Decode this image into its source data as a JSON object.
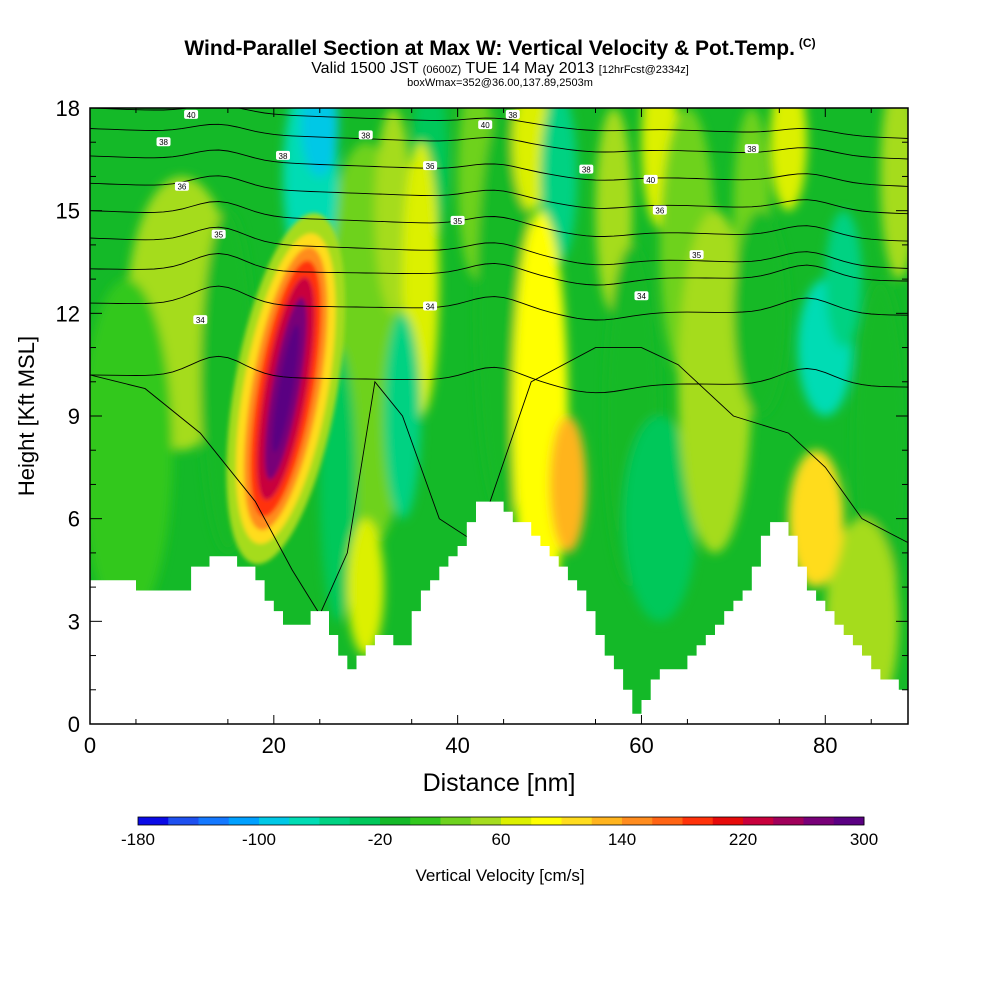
{
  "header": {
    "title": "Wind-Parallel Section at Max W: Vertical Velocity & Pot.Temp.",
    "copyright": "(C)",
    "valid_a": "Valid 1500 JST",
    "valid_b": "(0600Z)",
    "valid_c": "TUE 14 May 2013",
    "valid_d": "[12hrFcst@2334z]",
    "box": "boxWmax=352@36.00,137.89,2503m"
  },
  "chart_data": {
    "type": "heatmap",
    "xlabel": "Distance [nm]",
    "ylabel": "Height [Kft MSL]",
    "xlim": [
      0,
      89
    ],
    "ylim": [
      0,
      18
    ],
    "xticks": [
      0,
      20,
      40,
      60,
      80
    ],
    "yticks": [
      0,
      3,
      6,
      9,
      12,
      15,
      18
    ],
    "colorbar": {
      "label": "Vertical Velocity [cm/s]",
      "min": -180,
      "max": 300,
      "step": 20,
      "tick_labels": [
        "-180",
        "-100",
        "-20",
        "60",
        "140",
        "220",
        "300"
      ],
      "colors": [
        "#0a0ae6",
        "#1e50f0",
        "#1478ff",
        "#00a0ff",
        "#00c8e6",
        "#00dcb4",
        "#00d282",
        "#00c85a",
        "#14b928",
        "#32c81e",
        "#6ed21e",
        "#a5dc1e",
        "#dcf000",
        "#ffff00",
        "#ffdc1e",
        "#ffb41e",
        "#ff8c1e",
        "#ff6414",
        "#ff320a",
        "#e60a0a",
        "#c8003c",
        "#a0005a",
        "#780078",
        "#5a0082"
      ]
    },
    "terrain": {
      "x": [
        0,
        5,
        5,
        11,
        11,
        13,
        13,
        16,
        16,
        18,
        18,
        19,
        19,
        20,
        20,
        21,
        21,
        22,
        22,
        23,
        23,
        24,
        24,
        25,
        25,
        26,
        26,
        27,
        27,
        28,
        28,
        29,
        29,
        30,
        30,
        31,
        31,
        33,
        33,
        35,
        35,
        36,
        36,
        37,
        37,
        38,
        38,
        39,
        39,
        40,
        40,
        41,
        41,
        42,
        42,
        43,
        43,
        44,
        44,
        45,
        45,
        46,
        46,
        47,
        47,
        48,
        48,
        49,
        49,
        50,
        50,
        51,
        51,
        52,
        52,
        53,
        53,
        54,
        54,
        55,
        55,
        56,
        56,
        57,
        57,
        58,
        58,
        59,
        59,
        60,
        60,
        61,
        61,
        62,
        62,
        63,
        63,
        64,
        64,
        65,
        65,
        66,
        66,
        67,
        67,
        68,
        68,
        69,
        69,
        70,
        70,
        71,
        71,
        72,
        72,
        73,
        73,
        74,
        74,
        75,
        75,
        76,
        76,
        77,
        77,
        78,
        78,
        79,
        79,
        80,
        80,
        81,
        81,
        82,
        82,
        83,
        83,
        84,
        84,
        85,
        85,
        86,
        86,
        87,
        87,
        88,
        88,
        89
      ],
      "y": [
        4.2,
        4.2,
        3.9,
        3.9,
        4.6,
        4.6,
        4.9,
        4.9,
        4.6,
        4.6,
        4.2,
        4.2,
        3.6,
        3.6,
        3.3,
        3.3,
        2.9,
        2.9,
        2.9,
        2.9,
        2.9,
        2.9,
        3.3,
        3.3,
        3.3,
        3.3,
        2.6,
        2.6,
        2.0,
        2.0,
        1.6,
        1.6,
        2.0,
        2.0,
        2.3,
        2.3,
        2.6,
        2.6,
        2.3,
        2.3,
        3.3,
        3.3,
        3.9,
        3.9,
        4.2,
        4.2,
        4.6,
        4.6,
        4.9,
        4.9,
        5.2,
        5.2,
        5.9,
        5.9,
        6.5,
        6.5,
        6.5,
        6.5,
        6.5,
        6.5,
        6.2,
        6.2,
        5.9,
        5.9,
        5.9,
        5.9,
        5.5,
        5.5,
        5.2,
        5.2,
        4.9,
        4.9,
        4.6,
        4.6,
        4.2,
        4.2,
        3.9,
        3.9,
        3.3,
        3.3,
        2.6,
        2.6,
        2.0,
        2.0,
        1.6,
        1.6,
        1.0,
        1.0,
        0.3,
        0.3,
        0.7,
        0.7,
        1.3,
        1.3,
        1.6,
        1.6,
        1.6,
        1.6,
        1.6,
        1.6,
        2.0,
        2.0,
        2.3,
        2.3,
        2.6,
        2.6,
        2.9,
        2.9,
        3.3,
        3.3,
        3.6,
        3.6,
        3.9,
        3.9,
        4.6,
        4.6,
        5.5,
        5.5,
        5.9,
        5.9,
        5.9,
        5.9,
        5.5,
        5.5,
        4.6,
        4.6,
        3.9,
        3.9,
        3.6,
        3.6,
        3.3,
        3.3,
        2.9,
        2.9,
        2.6,
        2.6,
        2.3,
        2.3,
        2.0,
        2.0,
        1.6,
        1.6,
        1.3,
        1.3,
        1.3,
        1.3,
        1.0,
        1.0,
        1.0,
        1.0
      ]
    },
    "isentropes": {
      "label_values": [
        "34",
        "34",
        "34",
        "35",
        "35",
        "35",
        "36",
        "36",
        "36",
        "38",
        "38",
        "38",
        "38",
        "38",
        "38",
        "40",
        "40",
        "40"
      ]
    }
  }
}
